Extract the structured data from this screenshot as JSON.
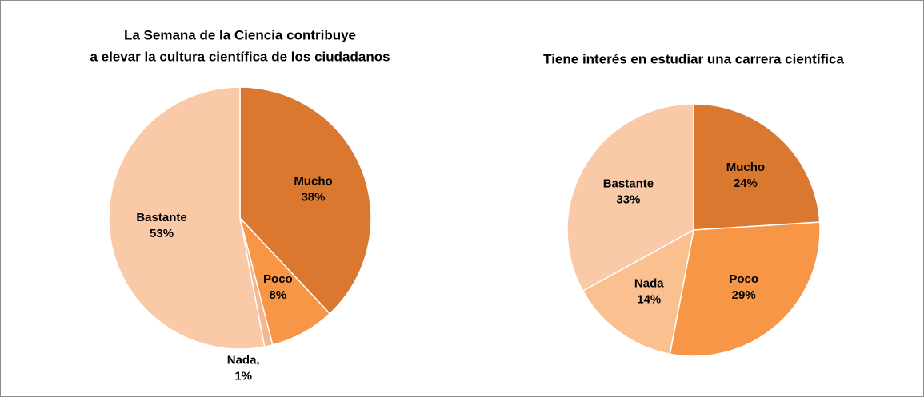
{
  "chart_data": [
    {
      "type": "pie",
      "title": [
        "La Semana de la Ciencia contribuye",
        "a elevar la cultura científica de los ciudadanos"
      ],
      "categories": [
        "Mucho",
        "Poco",
        "Nada,",
        "Bastante"
      ],
      "values": [
        38,
        8,
        1,
        53
      ],
      "value_labels": [
        "38%",
        "8%",
        "1%",
        "53%"
      ],
      "colors": [
        "#d9782e",
        "#f79646",
        "#f4b88e",
        "#f9c9a8"
      ]
    },
    {
      "type": "pie",
      "title": [
        "Tiene interés en estudiar una carrera científica"
      ],
      "categories": [
        "Mucho",
        "Poco",
        "Nada",
        "Bastante"
      ],
      "values": [
        24,
        29,
        14,
        33
      ],
      "value_labels": [
        "24%",
        "29%",
        "14%",
        "33%"
      ],
      "colors": [
        "#d9782e",
        "#f79646",
        "#fac090",
        "#f9c9a8"
      ]
    }
  ]
}
